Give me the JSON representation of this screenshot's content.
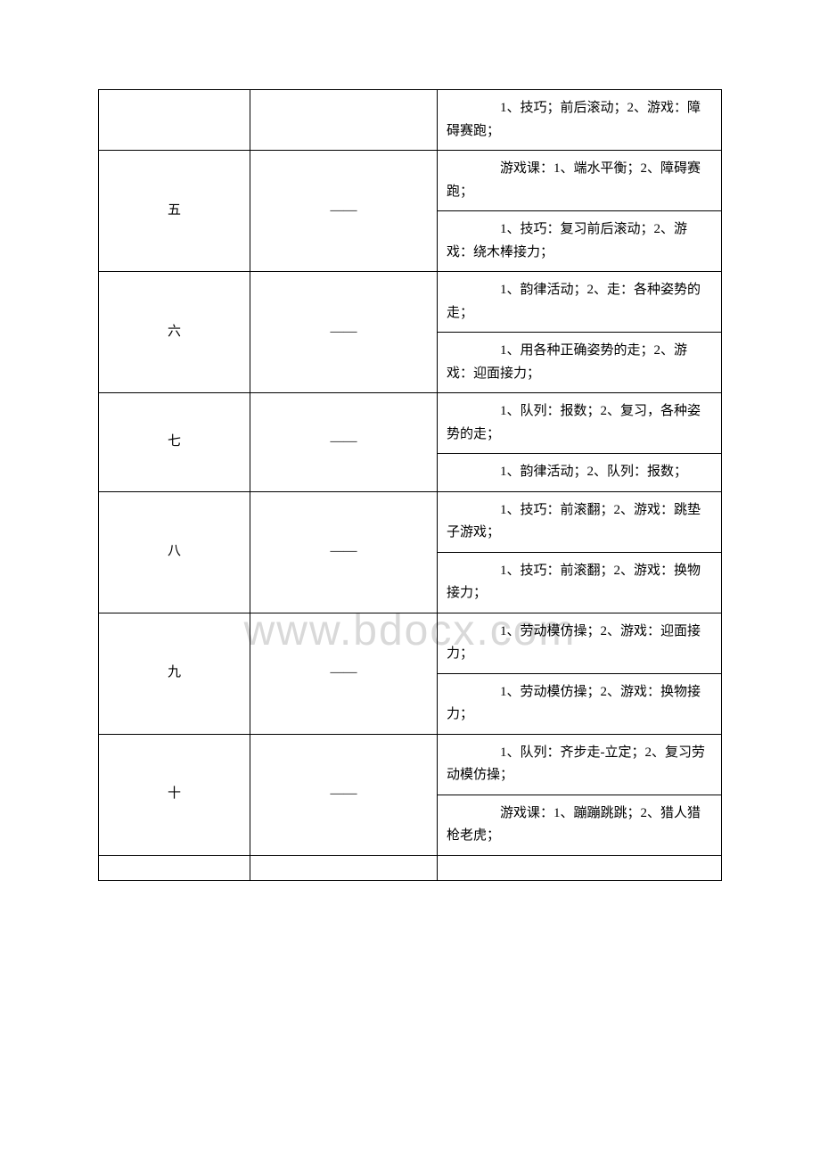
{
  "watermark": "www.bdocx.com",
  "table": {
    "col_widths": [
      "170px",
      "210px",
      "auto"
    ],
    "border_color": "#000000",
    "background_color": "#ffffff",
    "text_color": "#000000",
    "font_size": 15,
    "rows": [
      {
        "col1": "",
        "col2": "",
        "col3_items": [
          "　　1、技巧；前后滚动；2、游戏：障碍赛跑；"
        ],
        "col1_rowspan": 1,
        "col2_rowspan": 1,
        "no_left_border": true
      },
      {
        "col1": "五",
        "col2": "——",
        "col3_items": [
          "　　游戏课：1、端水平衡；2、障碍赛跑；",
          "　　1、技巧：复习前后滚动；2、游戏：绕木棒接力；"
        ],
        "col1_rowspan": 2,
        "col2_rowspan": 2
      },
      {
        "col1": "六",
        "col2": "——",
        "col3_items": [
          "　　1、韵律活动；2、走：各种姿势的走；",
          "　　1、用各种正确姿势的走；2、游戏：迎面接力；"
        ],
        "col1_rowspan": 2,
        "col2_rowspan": 2
      },
      {
        "col1": "七",
        "col2": "——",
        "col3_items": [
          "　　1、队列：报数；2、复习，各种姿势的走；",
          "　　1、韵律活动；2、队列：报数；"
        ],
        "col1_rowspan": 2,
        "col2_rowspan": 2
      },
      {
        "col1": "八",
        "col2": "——",
        "col3_items": [
          "　　1、技巧：前滚翻；2、游戏：跳垫子游戏；",
          "　　1、技巧：前滚翻；2、游戏：换物接力；"
        ],
        "col1_rowspan": 2,
        "col2_rowspan": 2
      },
      {
        "col1": "九",
        "col2": "——",
        "col3_items": [
          "　　1、劳动模仿操；2、游戏：迎面接力；",
          "　　1、劳动模仿操；2、游戏：换物接力；"
        ],
        "col1_rowspan": 2,
        "col2_rowspan": 2
      },
      {
        "col1": "十",
        "col2": "——",
        "col3_items": [
          "　　1、队列：齐步走-立定；2、复习劳动模仿操；",
          "　　游戏课：1、蹦蹦跳跳；2、猎人猎枪老虎；"
        ],
        "col1_rowspan": 2,
        "col2_rowspan": 2
      },
      {
        "col1": "",
        "col2": "",
        "col3_items": [
          ""
        ],
        "col1_rowspan": 1,
        "col2_rowspan": 1,
        "empty": true
      }
    ]
  }
}
